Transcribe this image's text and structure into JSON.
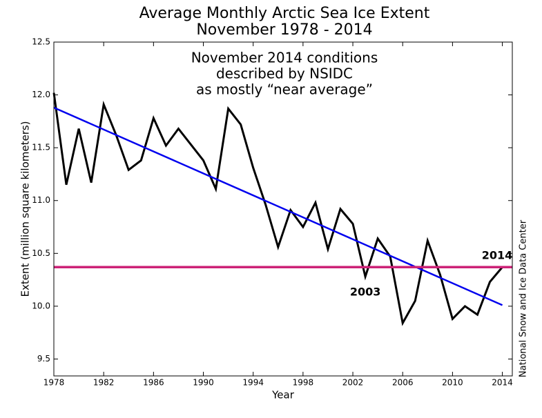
{
  "chart_data": {
    "type": "line",
    "title": [
      "Average Monthly Arctic Sea Ice Extent",
      "November 1978 - 2014"
    ],
    "x_label": "Year",
    "y_label": "Extent (million square kilometers)",
    "side_label": "National Snow and Ice Data Center",
    "annotation": [
      "November 2014 conditions",
      "described by NSIDC",
      "as mostly “near average”"
    ],
    "point_labels": [
      {
        "x": 2003,
        "text": "2003"
      },
      {
        "x": 2014,
        "text": "2014"
      }
    ],
    "x": [
      1978,
      1979,
      1980,
      1981,
      1982,
      1983,
      1984,
      1985,
      1986,
      1987,
      1988,
      1989,
      1990,
      1991,
      1992,
      1993,
      1994,
      1995,
      1996,
      1997,
      1998,
      1999,
      2000,
      2001,
      2002,
      2003,
      2004,
      2005,
      2006,
      2007,
      2008,
      2009,
      2010,
      2011,
      2012,
      2013,
      2014
    ],
    "values": [
      12.02,
      11.15,
      11.68,
      11.17,
      11.91,
      11.62,
      11.29,
      11.38,
      11.78,
      11.52,
      11.68,
      11.53,
      11.38,
      11.11,
      11.87,
      11.72,
      11.31,
      10.96,
      10.56,
      10.91,
      10.75,
      10.98,
      10.54,
      10.92,
      10.78,
      10.28,
      10.64,
      10.47,
      9.84,
      10.05,
      10.62,
      10.3,
      9.88,
      10.0,
      9.92,
      10.23,
      10.37
    ],
    "color": "#000000",
    "trend": {
      "x": [
        1978,
        2014
      ],
      "values": [
        11.88,
        10.01
      ],
      "color": "#0000ee"
    },
    "reference_line": {
      "value": 10.37,
      "color": "#cc2277"
    },
    "xlim": [
      1978,
      2014.8
    ],
    "ylim": [
      9.34,
      12.5
    ],
    "xticks": [
      1978,
      1982,
      1986,
      1990,
      1994,
      1998,
      2002,
      2006,
      2010,
      2014
    ],
    "yticks": [
      9.5,
      {
        "value": 10,
        "label": "10.0"
      },
      10.5,
      {
        "value": 11,
        "label": "11.0"
      },
      11.5,
      {
        "value": 12,
        "label": "12.0"
      },
      12.5
    ]
  }
}
